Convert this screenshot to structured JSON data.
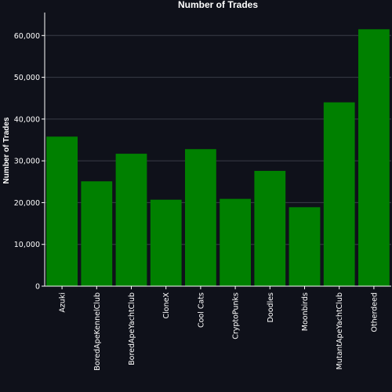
{
  "chart_data": {
    "type": "bar",
    "title": "Number of Trades",
    "xlabel": "",
    "ylabel": "Number of Trades",
    "categories": [
      "Azuki",
      "BoredApeKennelClub",
      "BoredApeYachtClub",
      "CloneX",
      "Cool Cats",
      "CryptoPunks",
      "Doodles",
      "Moonbirds",
      "MutantApeYachtClub",
      "Otherdeed"
    ],
    "values": [
      35800,
      25100,
      31700,
      20700,
      32800,
      20900,
      27600,
      18900,
      44000,
      61500
    ],
    "ylim": [
      0,
      65500
    ],
    "yticks": [
      0,
      10000,
      20000,
      30000,
      40000,
      50000,
      60000
    ],
    "ytick_labels": [
      "0",
      "10,000",
      "20,000",
      "30,000",
      "40,000",
      "50,000",
      "60,000"
    ],
    "grid": true,
    "legend": "none",
    "colors": {
      "bar": "#008000",
      "background": "#0f111a",
      "grid": "#3a3d47",
      "axis": "#ffffff"
    }
  }
}
